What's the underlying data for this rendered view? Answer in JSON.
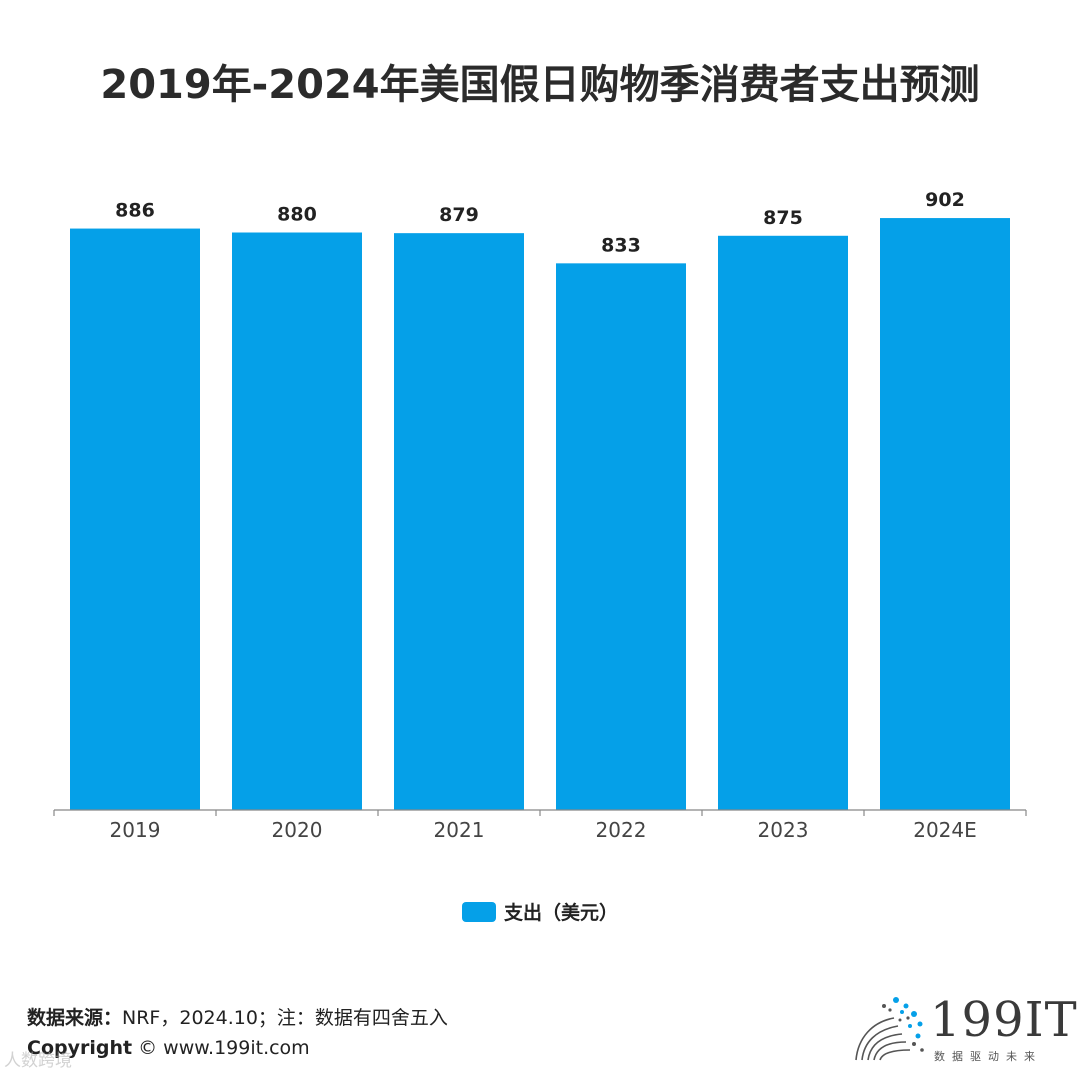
{
  "title": "2019年-2024年美国假日购物季消费者支出预测",
  "chart_data": {
    "type": "bar",
    "categories": [
      "2019",
      "2020",
      "2021",
      "2022",
      "2023",
      "2024E"
    ],
    "series": [
      {
        "name": "支出（美元）",
        "values": [
          886,
          880,
          879,
          833,
          875,
          902
        ],
        "color": "#05A0E8"
      }
    ],
    "data_labels": [
      "886",
      "880",
      "879",
      "833",
      "875",
      "902"
    ],
    "ylim": [
      0,
      960
    ],
    "grid": false,
    "legend_position": "bottom"
  },
  "footer": {
    "source_label": "数据来源：",
    "source_text": "NRF，2024.10；注：数据有四舍五入",
    "copyright_label": "Copyright",
    "copyright_text": "© www.199it.com",
    "watermark": "人数跨境"
  },
  "logo": {
    "name": "199IT",
    "tagline": "数据驱动未来",
    "color": "#05A0E8"
  }
}
